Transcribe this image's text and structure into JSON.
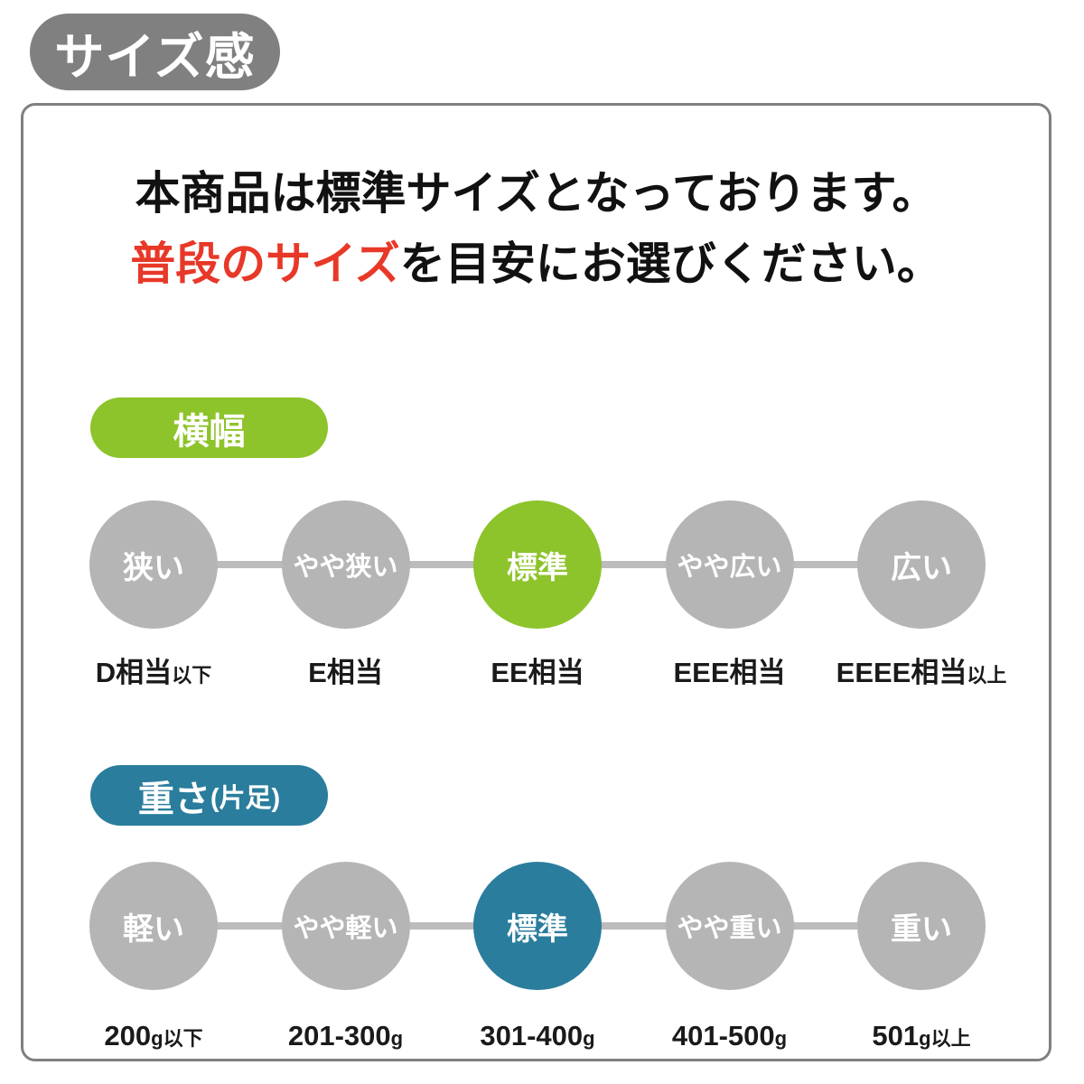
{
  "badge": {
    "title": "サイズ感"
  },
  "intro": {
    "line1": "本商品は標準サイズとなっております。",
    "line2_highlight": "普段のサイズ",
    "line2_rest": "を目安にお選びください。"
  },
  "colors": {
    "badge_gray": "#808080",
    "frame_border_gray": "#808080",
    "circle_gray": "#b5b5b5",
    "connector_gray": "#bcbcbc",
    "accent_green": "#8dc32b",
    "accent_blue": "#2a7d9c",
    "highlight_red": "#e83828",
    "text_black": "#111111"
  },
  "sections": [
    {
      "id": "width",
      "label": "横幅",
      "label_suffix": "",
      "accent": "#8dc32b",
      "selected_index": 2,
      "items": [
        {
          "circle": "狭い",
          "selected": false,
          "label_main": "D相当",
          "label_small": "以下"
        },
        {
          "circle": "やや狭い",
          "selected": false,
          "label_main": "E相当",
          "label_small": ""
        },
        {
          "circle": "標準",
          "selected": true,
          "label_main": "EE相当",
          "label_small": ""
        },
        {
          "circle": "やや広い",
          "selected": false,
          "label_main": "EEE相当",
          "label_small": ""
        },
        {
          "circle": "広い",
          "selected": false,
          "label_main": "EEEE相当",
          "label_small": "以上"
        }
      ]
    },
    {
      "id": "weight",
      "label": "重さ",
      "label_suffix": "(片足)",
      "accent": "#2a7d9c",
      "selected_index": 2,
      "items": [
        {
          "circle": "軽い",
          "selected": false,
          "label_main": "200",
          "label_small": "g以下"
        },
        {
          "circle": "やや軽い",
          "selected": false,
          "label_main": "201-300",
          "label_small": "g"
        },
        {
          "circle": "標準",
          "selected": true,
          "label_main": "301-400",
          "label_small": "g"
        },
        {
          "circle": "やや重い",
          "selected": false,
          "label_main": "401-500",
          "label_small": "g"
        },
        {
          "circle": "重い",
          "selected": false,
          "label_main": "501",
          "label_small": "g以上"
        }
      ]
    }
  ]
}
